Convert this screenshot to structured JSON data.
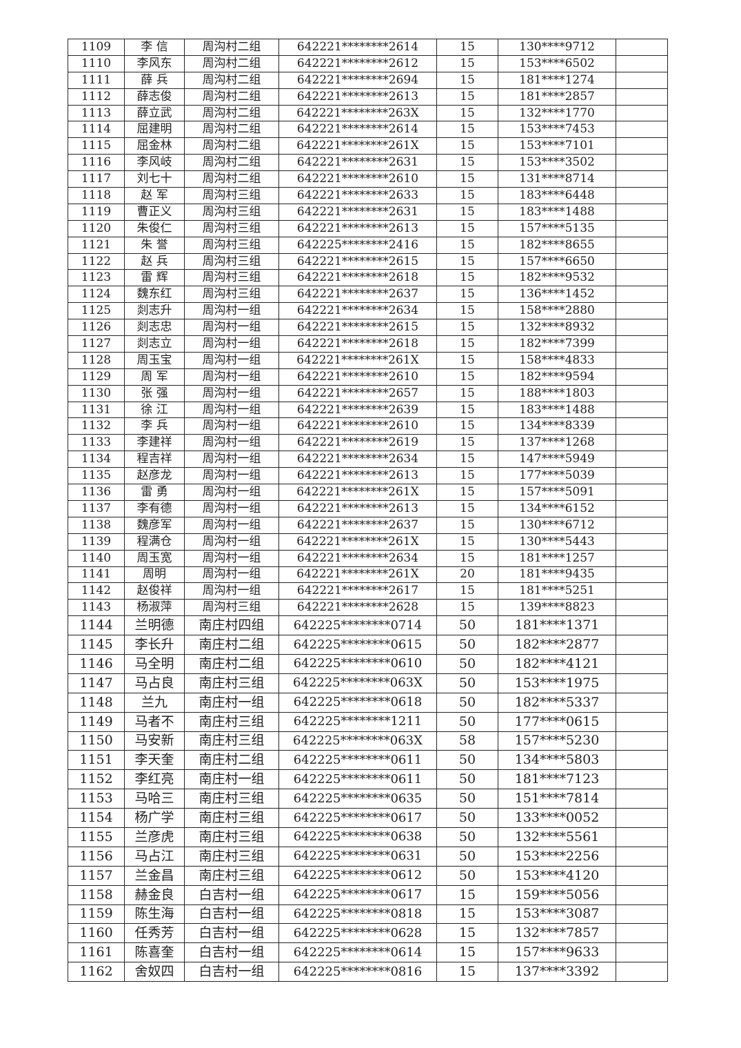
{
  "table": {
    "rows": [
      [
        "1109",
        "李 信",
        "周沟村二组",
        "642221********2614",
        "15",
        "130****9712",
        ""
      ],
      [
        "1110",
        "李风东",
        "周沟村二组",
        "642221********2612",
        "15",
        "153****6502",
        ""
      ],
      [
        "1111",
        "薛 兵",
        "周沟村二组",
        "642221********2694",
        "15",
        "181****1274",
        ""
      ],
      [
        "1112",
        "薛志俊",
        "周沟村二组",
        "642221********2613",
        "15",
        "181****2857",
        ""
      ],
      [
        "1113",
        "薛立武",
        "周沟村二组",
        "642221********263X",
        "15",
        "132****1770",
        ""
      ],
      [
        "1114",
        "屈建明",
        "周沟村二组",
        "642221********2614",
        "15",
        "153****7453",
        ""
      ],
      [
        "1115",
        "屈金林",
        "周沟村二组",
        "642221********261X",
        "15",
        "153****7101",
        ""
      ],
      [
        "1116",
        "李风岐",
        "周沟村二组",
        "642221********2631",
        "15",
        "153****3502",
        ""
      ],
      [
        "1117",
        "刘七十",
        "周沟村二组",
        "642221********2610",
        "15",
        "131****8714",
        ""
      ],
      [
        "1118",
        "赵 军",
        "周沟村三组",
        "642221********2633",
        "15",
        "183****6448",
        ""
      ],
      [
        "1119",
        "曹正义",
        "周沟村三组",
        "642221********2631",
        "15",
        "183****1488",
        ""
      ],
      [
        "1120",
        "朱俊仁",
        "周沟村三组",
        "642221********2613",
        "15",
        "157****5135",
        ""
      ],
      [
        "1121",
        "朱 誉",
        "周沟村三组",
        "642225********2416",
        "15",
        "182****8655",
        ""
      ],
      [
        "1122",
        "赵 兵",
        "周沟村三组",
        "642221********2615",
        "15",
        "157****6650",
        ""
      ],
      [
        "1123",
        "雷 辉",
        "周沟村三组",
        "642221********2618",
        "15",
        "182****9532",
        ""
      ],
      [
        "1124",
        "魏东红",
        "周沟村三组",
        "642221********2637",
        "15",
        "136****1452",
        ""
      ],
      [
        "1125",
        "剡志升",
        "周沟村一组",
        "642221********2634",
        "15",
        "158****2880",
        ""
      ],
      [
        "1126",
        "剡志忠",
        "周沟村一组",
        "642221********2615",
        "15",
        "132****8932",
        ""
      ],
      [
        "1127",
        "剡志立",
        "周沟村一组",
        "642221********2618",
        "15",
        "182****7399",
        ""
      ],
      [
        "1128",
        "周玉宝",
        "周沟村一组",
        "642221********261X",
        "15",
        "158****4833",
        ""
      ],
      [
        "1129",
        "周 军",
        "周沟村一组",
        "642221********2610",
        "15",
        "182****9594",
        ""
      ],
      [
        "1130",
        "张 强",
        "周沟村一组",
        "642221********2657",
        "15",
        "188****1803",
        ""
      ],
      [
        "1131",
        "徐 江",
        "周沟村一组",
        "642221********2639",
        "15",
        "183****1488",
        ""
      ],
      [
        "1132",
        "李 兵",
        "周沟村一组",
        "642221********2610",
        "15",
        "134****8339",
        ""
      ],
      [
        "1133",
        "李建祥",
        "周沟村一组",
        "642221********2619",
        "15",
        "137****1268",
        ""
      ],
      [
        "1134",
        "程吉祥",
        "周沟村一组",
        "642221********2634",
        "15",
        "147****5949",
        ""
      ],
      [
        "1135",
        "赵彦龙",
        "周沟村一组",
        "642221********2613",
        "15",
        "177****5039",
        ""
      ],
      [
        "1136",
        "雷 勇",
        "周沟村一组",
        "642221********261X",
        "15",
        "157****5091",
        ""
      ],
      [
        "1137",
        "李有德",
        "周沟村一组",
        "642221********2613",
        "15",
        "134****6152",
        ""
      ],
      [
        "1138",
        "魏彦军",
        "周沟村一组",
        "642221********2637",
        "15",
        "130****6712",
        ""
      ],
      [
        "1139",
        "程满仓",
        "周沟村一组",
        "642221********261X",
        "15",
        "130****5443",
        ""
      ],
      [
        "1140",
        "周玉宽",
        "周沟村一组",
        "642221********2634",
        "15",
        "181****1257",
        ""
      ],
      [
        "1141",
        "周明",
        "周沟村一组",
        "642221********261X",
        "20",
        "181****9435",
        ""
      ],
      [
        "1142",
        "赵俊祥",
        "周沟村一组",
        "642221********2617",
        "15",
        "181****5251",
        ""
      ],
      [
        "1143",
        "杨淑萍",
        "周沟村三组",
        "642221********2628",
        "15",
        "139****8823",
        ""
      ],
      [
        "1144",
        "兰明德",
        "南庄村四组",
        "642225********0714",
        "50",
        "181****1371",
        ""
      ],
      [
        "1145",
        "李长升",
        "南庄村二组",
        "642225********0615",
        "50",
        "182****2877",
        ""
      ],
      [
        "1146",
        "马全明",
        "南庄村二组",
        "642225********0610",
        "50",
        "182****4121",
        ""
      ],
      [
        "1147",
        "马占良",
        "南庄村三组",
        "642225********063X",
        "50",
        "153****1975",
        ""
      ],
      [
        "1148",
        "兰九",
        "南庄村一组",
        "642225********0618",
        "50",
        "182****5337",
        ""
      ],
      [
        "1149",
        "马者不",
        "南庄村三组",
        "642225********1211",
        "50",
        "177****0615",
        ""
      ],
      [
        "1150",
        "马安新",
        "南庄村三组",
        "642225********063X",
        "58",
        "157****5230",
        ""
      ],
      [
        "1151",
        "李天奎",
        "南庄村二组",
        "642225********0611",
        "50",
        "134****5803",
        ""
      ],
      [
        "1152",
        "李红亮",
        "南庄村一组",
        "642225********0611",
        "50",
        "181****7123",
        ""
      ],
      [
        "1153",
        "马哈三",
        "南庄村三组",
        "642225********0635",
        "50",
        "151****7814",
        ""
      ],
      [
        "1154",
        "杨广学",
        "南庄村三组",
        "642225********0617",
        "50",
        "133****0052",
        ""
      ],
      [
        "1155",
        "兰彦虎",
        "南庄村三组",
        "642225********0638",
        "50",
        "132****5561",
        ""
      ],
      [
        "1156",
        "马占江",
        "南庄村三组",
        "642225********0631",
        "50",
        "153****2256",
        ""
      ],
      [
        "1157",
        "兰金昌",
        "南庄村三组",
        "642225********0612",
        "50",
        "153****4120",
        ""
      ],
      [
        "1158",
        "赫金良",
        "白吉村一组",
        "642225********0617",
        "15",
        "159****5056",
        ""
      ],
      [
        "1159",
        "陈生海",
        "白吉村一组",
        "642225********0818",
        "15",
        "153****3087",
        ""
      ],
      [
        "1160",
        "任秀芳",
        "白吉村一组",
        "642225********0628",
        "15",
        "132****7857",
        ""
      ],
      [
        "1161",
        "陈喜奎",
        "白吉村一组",
        "642225********0614",
        "15",
        "157****9633",
        ""
      ],
      [
        "1162",
        "舍奴四",
        "白吉村一组",
        "642225********0816",
        "15",
        "137****3392",
        ""
      ]
    ]
  }
}
